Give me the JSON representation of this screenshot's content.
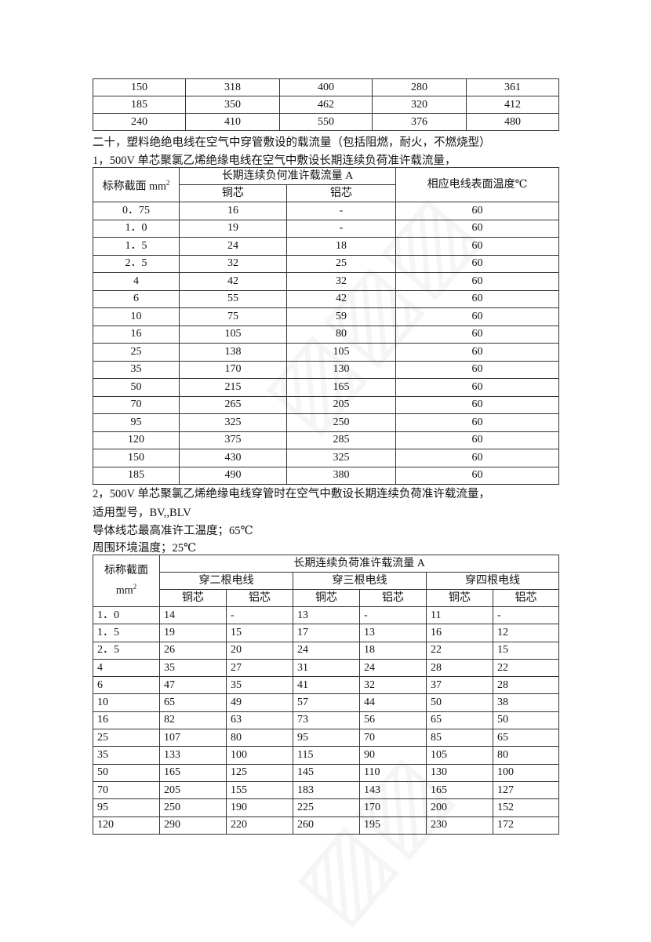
{
  "table_top": {
    "rows": [
      [
        "150",
        "318",
        "400",
        "280",
        "361"
      ],
      [
        "185",
        "350",
        "462",
        "320",
        "412"
      ],
      [
        "240",
        "410",
        "550",
        "376",
        "480"
      ]
    ]
  },
  "section_title": "二十，塑料绝绝电线在空气中穿管敷设的载流量（包括阻燃，耐火，不燃烧型）",
  "sub1_title": "1，500V 单芯聚氯乙烯绝缘电线在空气中敷设长期连续负荷准许载流量，",
  "table1": {
    "h_section": "标称截面 mm",
    "h_section_sup": "2",
    "h_current": "长期连续负何准许载流量 A",
    "h_copper": "铜芯",
    "h_aluminum": "铝芯",
    "h_temp": "相应电线表面温度℃",
    "rows": [
      [
        "0．75",
        "16",
        "-",
        "60"
      ],
      [
        "1．0",
        "19",
        "-",
        "60"
      ],
      [
        "1．5",
        "24",
        "18",
        "60"
      ],
      [
        "2．5",
        "32",
        "25",
        "60"
      ],
      [
        "4",
        "42",
        "32",
        "60"
      ],
      [
        "6",
        "55",
        "42",
        "60"
      ],
      [
        "10",
        "75",
        "59",
        "60"
      ],
      [
        "16",
        "105",
        "80",
        "60"
      ],
      [
        "25",
        "138",
        "105",
        "60"
      ],
      [
        "35",
        "170",
        "130",
        "60"
      ],
      [
        "50",
        "215",
        "165",
        "60"
      ],
      [
        "70",
        "265",
        "205",
        "60"
      ],
      [
        "95",
        "325",
        "250",
        "60"
      ],
      [
        "120",
        "375",
        "285",
        "60"
      ],
      [
        "150",
        "430",
        "325",
        "60"
      ],
      [
        "185",
        "490",
        "380",
        "60"
      ]
    ]
  },
  "sub2_title": "2，500V 单芯聚氯乙烯绝缘电线穿管时在空气中敷设长期连续负荷准许载流量，",
  "sub2_models": "适用型号，BV,,BLV",
  "sub2_max_temp": "导体线芯最高准许工温度；65℃",
  "sub2_ambient": "周围环境温度；25℃",
  "table2": {
    "h_section": "标称截面",
    "h_unit": "mm",
    "h_unit_sup": "2",
    "h_current": "长期连续负荷准许载流量 A",
    "h_two": "穿二根电线",
    "h_three": "穿三根电线",
    "h_four": "穿四根电线",
    "h_copper": "铜芯",
    "h_aluminum": "铝芯",
    "rows": [
      [
        "1．0",
        "14",
        "-",
        "13",
        "-",
        "11",
        "-"
      ],
      [
        "1．5",
        "19",
        "15",
        "17",
        "13",
        "16",
        "12"
      ],
      [
        "2．5",
        "26",
        "20",
        "24",
        "18",
        "22",
        "15"
      ],
      [
        "4",
        "35",
        "27",
        "31",
        "24",
        "28",
        "22"
      ],
      [
        "6",
        "47",
        "35",
        "41",
        "32",
        "37",
        "28"
      ],
      [
        "10",
        "65",
        "49",
        "57",
        "44",
        "50",
        "38"
      ],
      [
        "16",
        "82",
        "63",
        "73",
        "56",
        "65",
        "50"
      ],
      [
        "25",
        "107",
        "80",
        "95",
        "70",
        "85",
        "65"
      ],
      [
        "35",
        "133",
        "100",
        "115",
        "90",
        "105",
        "80"
      ],
      [
        "50",
        "165",
        "125",
        "145",
        "110",
        "130",
        "100"
      ],
      [
        "70",
        "205",
        "155",
        "183",
        "143",
        "165",
        "127"
      ],
      [
        "95",
        "250",
        "190",
        "225",
        "170",
        "200",
        "152"
      ],
      [
        "120",
        "290",
        "220",
        "260",
        "195",
        "230",
        "172"
      ]
    ]
  }
}
